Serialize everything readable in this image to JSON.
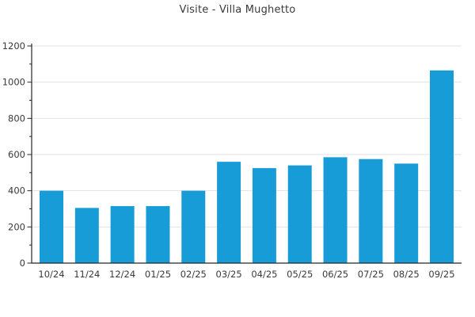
{
  "title": "Visite - Villa Mughetto",
  "chart_data": {
    "type": "bar",
    "title": "Visite - Villa Mughetto",
    "categories": [
      "10/24",
      "11/24",
      "12/24",
      "01/25",
      "02/25",
      "03/25",
      "04/25",
      "05/25",
      "06/25",
      "07/25",
      "08/25",
      "09/25"
    ],
    "values": [
      400,
      305,
      315,
      315,
      400,
      560,
      525,
      540,
      585,
      575,
      550,
      1065
    ],
    "xlabel": "",
    "ylabel": "",
    "ylim": [
      0,
      1200
    ],
    "ytick_step": 200,
    "yminor_step": 100,
    "ytick_labels": [
      "0",
      "200",
      "400",
      "600",
      "800",
      "1000",
      "1200"
    ],
    "grid": true,
    "legend": "none",
    "bar_color": "#189cd8",
    "axis_color": "#262626",
    "grid_color": "#e2e2e2",
    "label_color": "#3a3a3a",
    "background_color": "#ffffff"
  }
}
